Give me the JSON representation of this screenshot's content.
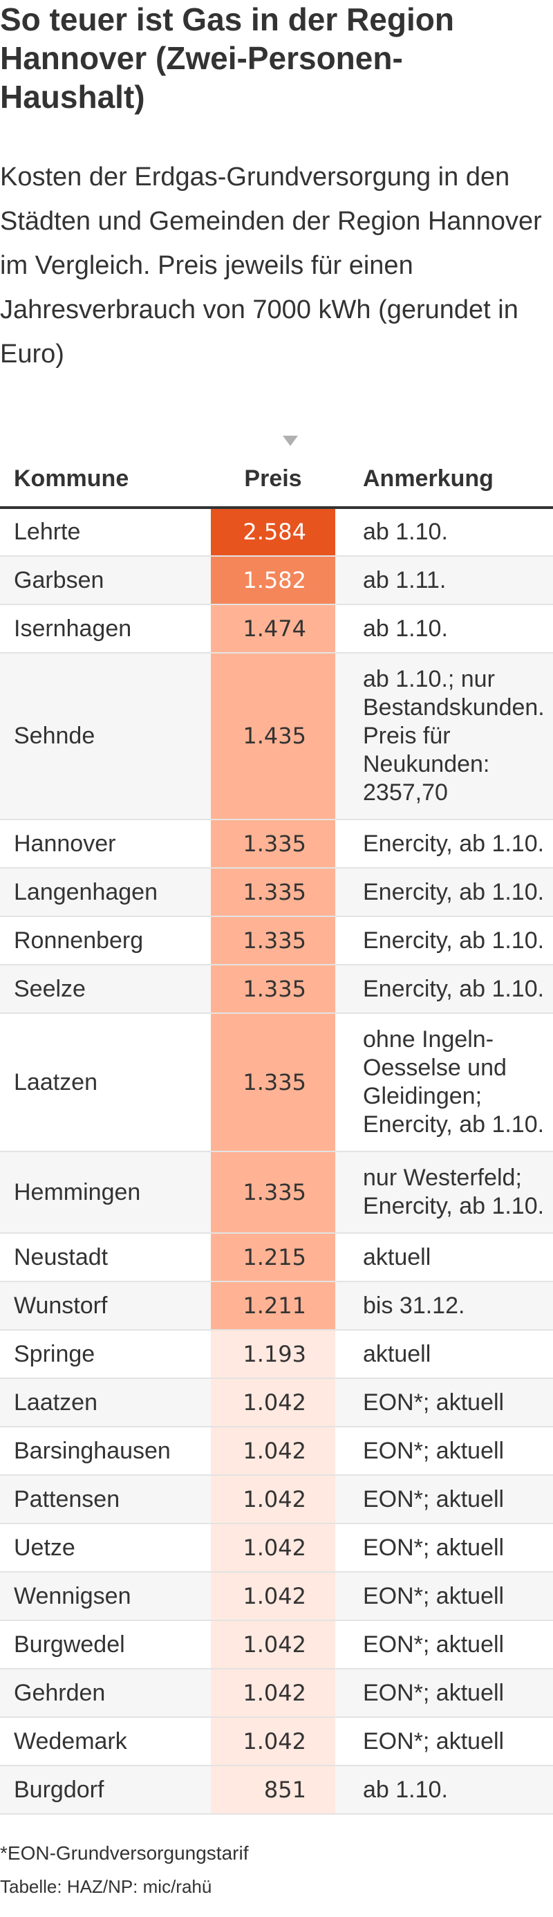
{
  "header": {
    "title": "So teuer ist Gas in der Region Hannover (Zwei-Personen-Haushalt)",
    "subtitle": "Kosten der Erdgas-Grundversorgung in den Städten und Gemeinden der Region Hannover im Vergleich. Preis jeweils für einen Jahresverbrauch von 7000 kWh (gerundet in Euro)"
  },
  "table": {
    "columns": [
      "Kommune",
      "Preis",
      "Anmerkung"
    ],
    "sorted_by": "Preis",
    "sort_direction": "descending"
  },
  "colors": {
    "text": "#333333",
    "scale_max": "#e8541e",
    "scale_high": "#f4865a",
    "scale_mid": "#ffb394",
    "scale_low": "#ffe9e1",
    "row_alt": "#f6f6f6"
  },
  "chart_data": {
    "type": "table",
    "columns": [
      "Kommune",
      "Preis",
      "Anmerkung"
    ],
    "rows": [
      {
        "kommune": "Lehrte",
        "preis": 2584,
        "preis_label": "2.584",
        "anmerkung": [
          "ab 1.10."
        ]
      },
      {
        "kommune": "Garbsen",
        "preis": 1582,
        "preis_label": "1.582",
        "anmerkung": [
          "ab 1.11."
        ]
      },
      {
        "kommune": "Isernhagen",
        "preis": 1474,
        "preis_label": "1.474",
        "anmerkung": [
          "ab 1.10."
        ]
      },
      {
        "kommune": "Sehnde",
        "preis": 1435,
        "preis_label": "1.435",
        "anmerkung": [
          "ab 1.10.; nur",
          "Bestandskunden.",
          "Preis für",
          "Neukunden:",
          "2357,70"
        ]
      },
      {
        "kommune": "Hannover",
        "preis": 1335,
        "preis_label": "1.335",
        "anmerkung": [
          "Enercity, ab 1.10."
        ]
      },
      {
        "kommune": "Langenhagen",
        "preis": 1335,
        "preis_label": "1.335",
        "anmerkung": [
          "Enercity, ab 1.10."
        ]
      },
      {
        "kommune": "Ronnenberg",
        "preis": 1335,
        "preis_label": "1.335",
        "anmerkung": [
          "Enercity, ab 1.10."
        ]
      },
      {
        "kommune": "Seelze",
        "preis": 1335,
        "preis_label": "1.335",
        "anmerkung": [
          "Enercity, ab 1.10."
        ]
      },
      {
        "kommune": "Laatzen",
        "preis": 1335,
        "preis_label": "1.335",
        "anmerkung": [
          "ohne Ingeln-",
          "Oesselse und",
          "Gleidingen;",
          "Enercity, ab 1.10."
        ]
      },
      {
        "kommune": "Hemmingen",
        "preis": 1335,
        "preis_label": "1.335",
        "anmerkung": [
          "nur Westerfeld;",
          "Enercity, ab 1.10."
        ]
      },
      {
        "kommune": "Neustadt",
        "preis": 1215,
        "preis_label": "1.215",
        "anmerkung": [
          "aktuell"
        ]
      },
      {
        "kommune": "Wunstorf",
        "preis": 1211,
        "preis_label": "1.211",
        "anmerkung": [
          "bis 31.12."
        ]
      },
      {
        "kommune": "Springe",
        "preis": 1193,
        "preis_label": "1.193",
        "anmerkung": [
          "aktuell"
        ]
      },
      {
        "kommune": "Laatzen",
        "preis": 1042,
        "preis_label": "1.042",
        "anmerkung": [
          "EON*; aktuell"
        ]
      },
      {
        "kommune": "Barsinghausen",
        "preis": 1042,
        "preis_label": "1.042",
        "anmerkung": [
          "EON*; aktuell"
        ]
      },
      {
        "kommune": "Pattensen",
        "preis": 1042,
        "preis_label": "1.042",
        "anmerkung": [
          "EON*; aktuell"
        ]
      },
      {
        "kommune": "Uetze",
        "preis": 1042,
        "preis_label": "1.042",
        "anmerkung": [
          "EON*; aktuell"
        ]
      },
      {
        "kommune": "Wennigsen",
        "preis": 1042,
        "preis_label": "1.042",
        "anmerkung": [
          "EON*; aktuell"
        ]
      },
      {
        "kommune": "Burgwedel",
        "preis": 1042,
        "preis_label": "1.042",
        "anmerkung": [
          "EON*; aktuell"
        ]
      },
      {
        "kommune": "Gehrden",
        "preis": 1042,
        "preis_label": "1.042",
        "anmerkung": [
          "EON*; aktuell"
        ]
      },
      {
        "kommune": "Wedemark",
        "preis": 1042,
        "preis_label": "1.042",
        "anmerkung": [
          "EON*; aktuell"
        ]
      },
      {
        "kommune": "Burgdorf",
        "preis": 851,
        "preis_label": "851",
        "anmerkung": [
          "ab 1.10."
        ]
      }
    ]
  },
  "footer": {
    "footnote": "*EON-Grundversorgungstarif",
    "source": "Tabelle: HAZ/NP: mic/rahü"
  }
}
